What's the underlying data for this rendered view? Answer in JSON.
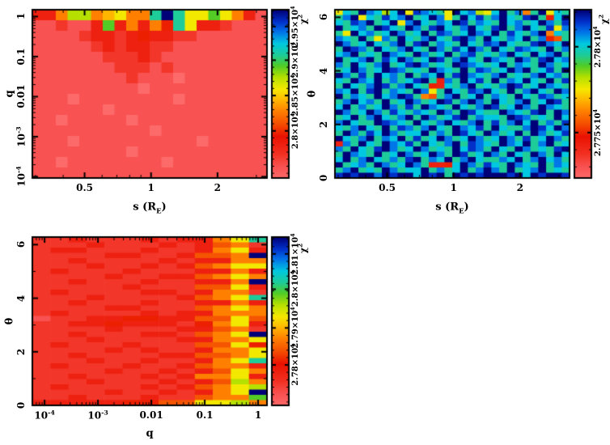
{
  "palette": {
    "background": "#ffffff",
    "frame_color": "#000000",
    "text_color": "#000000",
    "colormap_stops": [
      {
        "t": 0.0,
        "c": "#fc6a6a"
      },
      {
        "t": 0.07,
        "c": "#f95151"
      },
      {
        "t": 0.15,
        "c": "#f22f20"
      },
      {
        "t": 0.25,
        "c": "#ea1200"
      },
      {
        "t": 0.33,
        "c": "#f55300"
      },
      {
        "t": 0.4,
        "c": "#ff8000"
      },
      {
        "t": 0.47,
        "c": "#ffb900"
      },
      {
        "t": 0.53,
        "c": "#f5e800"
      },
      {
        "t": 0.6,
        "c": "#b5e000"
      },
      {
        "t": 0.67,
        "c": "#4ecc28"
      },
      {
        "t": 0.73,
        "c": "#1fcc96"
      },
      {
        "t": 0.8,
        "c": "#00c8e0"
      },
      {
        "t": 0.87,
        "c": "#0073e8"
      },
      {
        "t": 0.93,
        "c": "#0032cc"
      },
      {
        "t": 1.0,
        "c": "#000078"
      }
    ]
  },
  "chart_data": [
    {
      "id": "sq",
      "type": "heatmap",
      "x_axis": {
        "scale": "log",
        "min": 0.29,
        "max": 3.35,
        "long_multiples": [
          1,
          2,
          5
        ],
        "title": {
          "text": "s (R",
          "sub": "E",
          "suffix": ")"
        },
        "ticks": [
          {
            "v": 0.5,
            "label": "0.5"
          },
          {
            "v": 1,
            "label": "1"
          },
          {
            "v": 2,
            "label": "2"
          }
        ]
      },
      "y_axis": {
        "scale": "log",
        "min": 9.3e-05,
        "max": 1.48,
        "long_multiples": [
          1
        ],
        "title": {
          "text": "q",
          "sub": "",
          "suffix": ""
        },
        "ticks": [
          {
            "v": 1,
            "label": "1"
          },
          {
            "v": 0.1,
            "label": "0.1"
          },
          {
            "v": 0.01,
            "label": "0.01"
          },
          {
            "v": 0.001,
            "label": "10^-3"
          },
          {
            "v": 0.0001,
            "label": "10^-4"
          }
        ]
      },
      "colorbar": {
        "title": "χ^2",
        "ticks": [
          {
            "pos": 0.28,
            "label": "2.8×10^4"
          },
          {
            "pos": 0.49,
            "label": "2.85×10^4"
          },
          {
            "pos": 0.7,
            "label": "2.9×10^4"
          },
          {
            "pos": 0.9,
            "label": "2.95×10^4"
          }
        ]
      },
      "grid": [
        "3369967866bfb88a8631",
        "112113a36364b8332111",
        "11112332343322111111",
        "11111232332211111111",
        "11111122232111111111",
        "11111112221211111111",
        "11111111211101111111",
        "11111111101111111111",
        "11101111111101111111",
        "11111101111111111111",
        "11011111011111111111",
        "11111111110111111111",
        "11101111111111011111",
        "11111111011111111111",
        "11011111111011111111",
        "11111111111111111111"
      ]
    },
    {
      "id": "stheta",
      "type": "heatmap",
      "x_axis": {
        "scale": "log",
        "min": 0.29,
        "max": 3.35,
        "long_multiples": [
          1,
          2,
          5
        ],
        "title": {
          "text": "s (R",
          "sub": "E",
          "suffix": ")"
        },
        "ticks": [
          {
            "v": 0.5,
            "label": "0.5"
          },
          {
            "v": 1,
            "label": "1"
          },
          {
            "v": 2,
            "label": "2"
          }
        ]
      },
      "y_axis": {
        "scale": "linear",
        "min": 0,
        "max": 6.283,
        "major_step": 2,
        "minor_step": 1,
        "title": {
          "text": "θ",
          "sub": "",
          "suffix": ""
        },
        "ticks": [
          {
            "v": 0,
            "label": "0"
          },
          {
            "v": 2,
            "label": "2"
          },
          {
            "v": 4,
            "label": "4"
          },
          {
            "v": 6,
            "label": "6"
          }
        ]
      },
      "colorbar": {
        "title": "χ^2",
        "ticks": [
          {
            "pos": 0.27,
            "label": "2.775×10^4"
          },
          {
            "pos": 0.78,
            "label": "2.78×10^4"
          }
        ]
      },
      "grid": [
        "8cbfdc9cf8edcb8fcd98cfbd6bf8cb",
        "bdf8cbecdfbcfd8bfcebdfcbefb4cf",
        "cbedfbcf8dfcbdcfebdcbfcdbcfdbe",
        "fbcdbfecbfdbefcbdfcbefbdfcbe8d",
        "b8fcdbcfdbcfbedbcfdcfbecbdf6cb",
        "dcbfb8dbfcbdfcbefdbfcbdcfbd45b",
        "fdbcfcbdfbefbdcbfcbedfcbbefdcf",
        "bfedbfcbdfcbfdbecfdbfcbedcbfbd",
        "cdfbcbfdcbfdbcfbdebcbdfcbfcdfb",
        "fbcdfbecfdbcfebdfcbfdcbfdbefcd",
        "dbfcbdfbcefdbcbfedcbcfbdcbfdbc",
        "bcfdbcfedbcbfdcbfbedbcfdfbcebf",
        "fdbebfcdbfbdcfbefdcbdfbcbdfcdb",
        "cbfdcfbdbcefb3dbfcebfbdcfcbfbe",
        "bfcbdfebdfcb43cbdfbcbdfebcfdcb",
        "dcfbefbdcbfd8bfcbedfcbfbdfcbfd",
        "fbdcbfcdfeb65bdfbcfbdcbfcbedbc",
        "bdfcdbfbcfdbcfebdfdbfcbdfbcfeb",
        "cfbdbcfdbebfdcbfcbdfebcfdbfdcb",
        "fdbcfdbecbdcbfdbfecbbfdcbefbfd",
        "bcfbdfcbdfbfdbcefbdccbfedbcbfc",
        "dfcbbfedcbfcbdfcbdfbebdfcfbdbe",
        "cbdfcbfbedbdfcbfdcebfcbbdfecfd",
        "bfdbecfdbccfbdbfecbfdbcfbfdbce",
        "fcbdfbdcfbebcfdbcfdbcfdbebcfdb",
        "3dbfcbfdcebfcbdfbedcbfdcfbdfbc",
        "dbfcbefdbcfdbcbfcedbfcbfdbcbef",
        "bfdcbfbcfdbcfdbfebcfdbfcbfdbfc",
        "cfbdfcbdbefbdcfbdfcbbdcfbdfcdb",
        "fbcdbfdbcfdb334cfdbecbfdcbfbdc",
        "bdfbcbfdbccfbdbcfbdfdbfbcdfbcb",
        "efeffdfeffcfefbfefefffefcfeffe"
      ]
    },
    {
      "id": "qtheta",
      "type": "heatmap",
      "x_axis": {
        "scale": "log",
        "min": 5.9e-05,
        "max": 1.466,
        "long_multiples": [
          1
        ],
        "title": {
          "text": "q",
          "sub": "",
          "suffix": ""
        },
        "ticks": [
          {
            "v": 0.0001,
            "label": "10^-4"
          },
          {
            "v": 0.001,
            "label": "10^-3"
          },
          {
            "v": 0.01,
            "label": "0.01"
          },
          {
            "v": 0.1,
            "label": "0.1"
          },
          {
            "v": 1,
            "label": "1"
          }
        ]
      },
      "y_axis": {
        "scale": "linear",
        "min": 0,
        "max": 6.283,
        "major_step": 2,
        "minor_step": 1,
        "title": {
          "text": "θ",
          "sub": "",
          "suffix": ""
        },
        "ticks": [
          {
            "v": 0,
            "label": "0"
          },
          {
            "v": 2,
            "label": "2"
          },
          {
            "v": 4,
            "label": "4"
          },
          {
            "v": 6,
            "label": "6"
          }
        ]
      },
      "colorbar": {
        "title": "χ^2",
        "ticks": [
          {
            "pos": 0.24,
            "label": "2.78×10^4"
          },
          {
            "pos": 0.46,
            "label": "2.79×10^4"
          },
          {
            "pos": 0.69,
            "label": "2.8×10^4"
          },
          {
            "pos": 0.9,
            "label": "2.81×10^4"
          }
        ]
      },
      "grid": [
        "223222323368b",
        "2223222323562",
        "2332223223683",
        "222233223556f",
        "2232222323366",
        "2223223235688",
        "2322232223363",
        "2222322335686",
        "223222322336f",
        "2222232225583",
        "2322223323662",
        "222322223568b",
        "2232223223363",
        "2222332225686",
        "2322223233666",
        "1223344335585",
        "2233433324683",
        "2222322233562",
        "223222332568f",
        "2223222233668",
        "2322232225584",
        "2222323223668",
        "2232222335568",
        "222322322368b",
        "2322232235663",
        "2222322323586",
        "2232223236683",
        "2223222323596",
        "2322223235689",
        "222232232368f",
        "223222322566a",
        "3333344558896"
      ]
    }
  ]
}
